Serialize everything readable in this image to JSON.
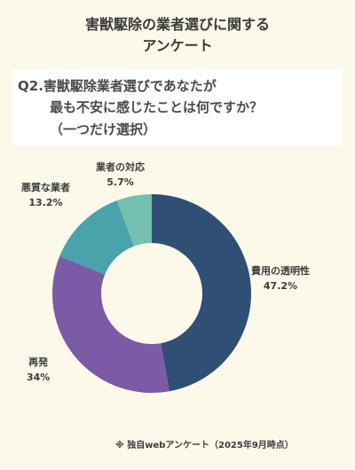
{
  "header": {
    "title_line1": "害獣駆除の業者選びに関する",
    "title_line2": "アンケート"
  },
  "question": {
    "line1": "Q2.害獣駆除業者選びであなたが",
    "line2": "最も不安に感じたことは何ですか？",
    "line3": "（一つだけ選択）"
  },
  "chart_data": {
    "type": "pie",
    "donut": true,
    "categories": [
      "費用の透明性",
      "再発",
      "悪質な業者",
      "業者の対応"
    ],
    "values": [
      47.2,
      34,
      13.2,
      5.7
    ],
    "value_labels": [
      "47.2%",
      "34%",
      "13.2%",
      "5.7%"
    ],
    "colors": [
      "#2f4f74",
      "#7b5aa6",
      "#4aa2aa",
      "#74bfad"
    ],
    "start": "12 o'clock, clockwise"
  },
  "footnote": "※ 独自webアンケート（2025年9月時点）"
}
